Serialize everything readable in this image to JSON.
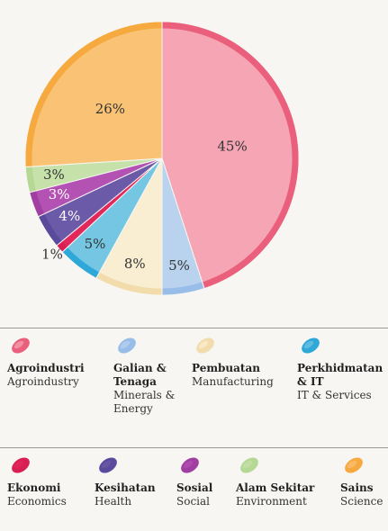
{
  "chart_data": {
    "type": "pie",
    "categories": [
      "Agroindustri",
      "Galian & Tenaga",
      "Pembuatan",
      "Perkhidmatan & IT",
      "Ekonomi",
      "Kesihatan",
      "Sosial",
      "Alam Sekitar",
      "Sains"
    ],
    "category_translations": [
      "Agroindustry",
      "Minerals & Energy",
      "Manufacturing",
      "IT & Services",
      "Economics",
      "Health",
      "Social",
      "Environment",
      "Science"
    ],
    "values": [
      45,
      5,
      8,
      5,
      1,
      4,
      3,
      3,
      26
    ],
    "value_labels": [
      "45%",
      "5%",
      "8%",
      "5%",
      "1%",
      "4%",
      "3%",
      "3%",
      "26%"
    ],
    "colors": [
      "#f5a5b4",
      "#b9d3ef",
      "#f9edd2",
      "#74c6e2",
      "#e2285a",
      "#6b5aa8",
      "#b452b4",
      "#c6e2aa",
      "#f9c275"
    ],
    "rim_colors": [
      "#ea5f7c",
      "#98bde9",
      "#f3dcab",
      "#2ea8d8",
      "#d81e52",
      "#5a4a9c",
      "#a13ea2",
      "#b5d894",
      "#f6a93f"
    ]
  }
}
